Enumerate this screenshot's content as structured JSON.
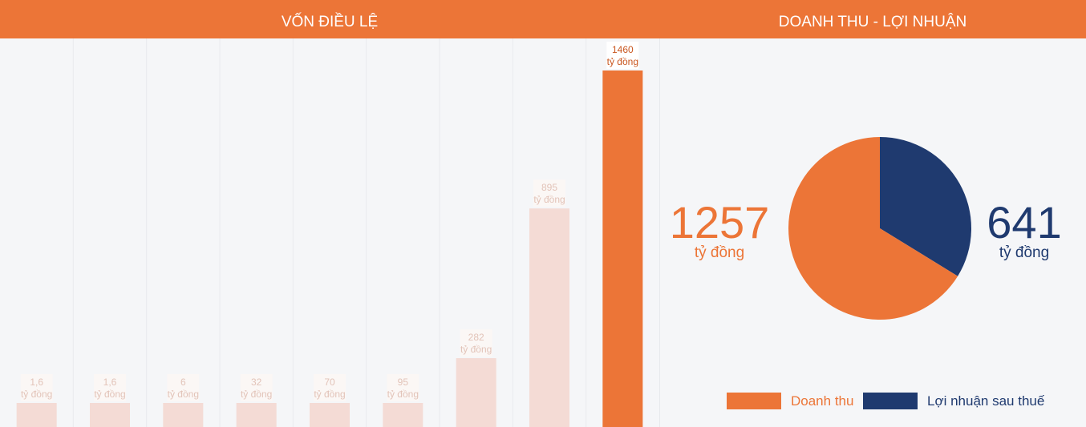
{
  "header": {
    "left_title": "VỐN ĐIỀU LỆ",
    "right_title": "DOANH THU - LỢI NHUẬN"
  },
  "colors": {
    "accent": "#ec7537",
    "navy": "#1f3a6f",
    "bar_faded": "#f4dbd5",
    "label_faded": "#e2c3b8"
  },
  "summary": {
    "revenue_value": "1257",
    "revenue_unit": "tỷ đồng",
    "profit_value": "641",
    "profit_unit": "tỷ đồng"
  },
  "legend": {
    "revenue_label": "Doanh thu",
    "profit_label": "Lợi nhuận sau thuế"
  },
  "chart_data": [
    {
      "type": "bar",
      "title": "VỐN ĐIỀU LỆ",
      "categories": [
        "",
        "",
        "",
        "",
        "",
        "",
        "",
        "",
        ""
      ],
      "values": [
        1.6,
        1.6,
        6,
        32,
        70,
        95,
        282,
        895,
        1460
      ],
      "value_labels": [
        "1,6",
        "1,6",
        "6",
        "32",
        "70",
        "95",
        "282",
        "895",
        "1460"
      ],
      "unit": "tỷ đồng",
      "highlight_index": 8,
      "grid": true
    },
    {
      "type": "pie",
      "title": "DOANH THU - LỢI NHUẬN",
      "series": [
        {
          "name": "Doanh thu",
          "value": 1257,
          "color": "#ec7537"
        },
        {
          "name": "Lợi nhuận sau thuế",
          "value": 641,
          "color": "#1f3a6f"
        }
      ],
      "unit": "tỷ đồng",
      "legend": "bottom"
    }
  ]
}
